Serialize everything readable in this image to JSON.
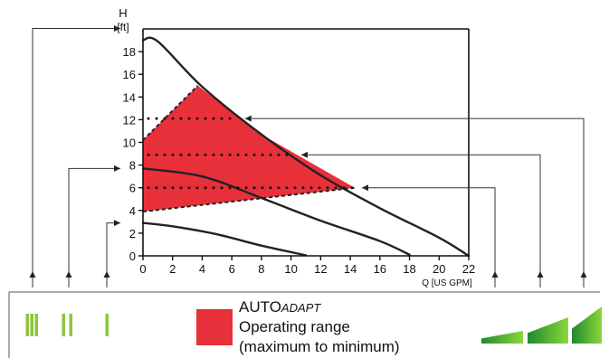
{
  "chart_data": {
    "type": "line",
    "ylabel": "H",
    "yunit": "[ft]",
    "xlabel": "Q [US GPM]",
    "xlim": [
      0,
      22
    ],
    "ylim": [
      0,
      20
    ],
    "xticks": [
      0,
      2,
      4,
      6,
      8,
      10,
      12,
      14,
      16,
      18,
      20,
      22
    ],
    "yticks": [
      0,
      2,
      4,
      6,
      8,
      10,
      12,
      14,
      16,
      18
    ],
    "grid": false,
    "series": [
      {
        "speed": "III",
        "x": [
          0,
          1,
          4,
          8,
          12,
          16,
          20,
          22
        ],
        "y": [
          19,
          18.9,
          14.9,
          10.7,
          7.1,
          4.2,
          1.6,
          0
        ]
      },
      {
        "speed": "II",
        "x": [
          0,
          4,
          8,
          12,
          16,
          18
        ],
        "y": [
          7.7,
          7.0,
          5.1,
          3.1,
          1.3,
          0.1
        ]
      },
      {
        "speed": "I",
        "x": [
          0,
          2,
          5,
          8,
          11
        ],
        "y": [
          2.9,
          2.6,
          1.9,
          0.9,
          0.05
        ]
      }
    ],
    "operating_range": {
      "color": "#e8303a",
      "polygon": {
        "x": [
          0,
          3.7,
          8,
          14.3,
          0
        ],
        "y": [
          10.2,
          15.0,
          10.7,
          6.0,
          3.9
        ]
      }
    },
    "autoadapt_levels": [
      {
        "y": 12.1,
        "x_end": 6.4
      },
      {
        "y": 8.9,
        "x_end": 10.2
      },
      {
        "y": 6.0,
        "x_end": 14.3
      }
    ]
  },
  "legend": {
    "title_main": "AUTO",
    "title_italic": "ADAPT",
    "line1": "Operating range",
    "line2": "(maximum to minimum)",
    "swatch_color": "#e8303a"
  },
  "speed_labels": [
    "III",
    "II",
    "I"
  ],
  "colors": {
    "speed_green": "#8cc63f",
    "wedge_dark": "#1e8a2e",
    "wedge_light": "#8cd63a"
  }
}
